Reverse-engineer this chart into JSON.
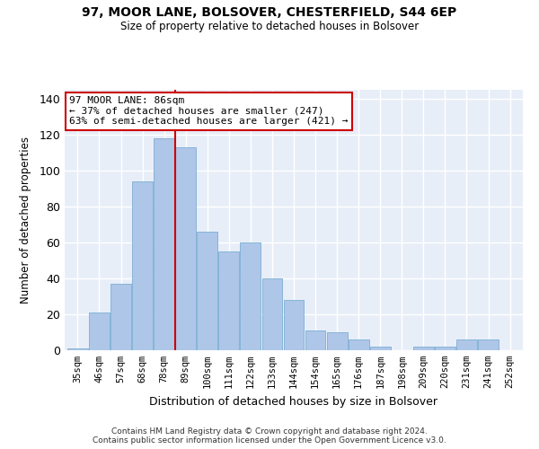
{
  "title_line1": "97, MOOR LANE, BOLSOVER, CHESTERFIELD, S44 6EP",
  "title_line2": "Size of property relative to detached houses in Bolsover",
  "xlabel": "Distribution of detached houses by size in Bolsover",
  "ylabel": "Number of detached properties",
  "categories": [
    "35sqm",
    "46sqm",
    "57sqm",
    "68sqm",
    "78sqm",
    "89sqm",
    "100sqm",
    "111sqm",
    "122sqm",
    "133sqm",
    "144sqm",
    "154sqm",
    "165sqm",
    "176sqm",
    "187sqm",
    "198sqm",
    "209sqm",
    "220sqm",
    "231sqm",
    "241sqm",
    "252sqm"
  ],
  "values": [
    1,
    21,
    37,
    94,
    118,
    113,
    66,
    55,
    60,
    40,
    28,
    11,
    10,
    6,
    2,
    0,
    2,
    2,
    6,
    6,
    0
  ],
  "bar_color": "#aec6e8",
  "bar_edge_color": "#7bafd4",
  "vline_x": 4.5,
  "vline_color": "#cc0000",
  "annotation_text": "97 MOOR LANE: 86sqm\n← 37% of detached houses are smaller (247)\n63% of semi-detached houses are larger (421) →",
  "annotation_box_color": "#ffffff",
  "annotation_box_edge": "#cc0000",
  "ylim": [
    0,
    145
  ],
  "yticks": [
    0,
    20,
    40,
    60,
    80,
    100,
    120,
    140
  ],
  "background_color": "#e8eef8",
  "grid_color": "#ffffff",
  "footer_line1": "Contains HM Land Registry data © Crown copyright and database right 2024.",
  "footer_line2": "Contains public sector information licensed under the Open Government Licence v3.0."
}
